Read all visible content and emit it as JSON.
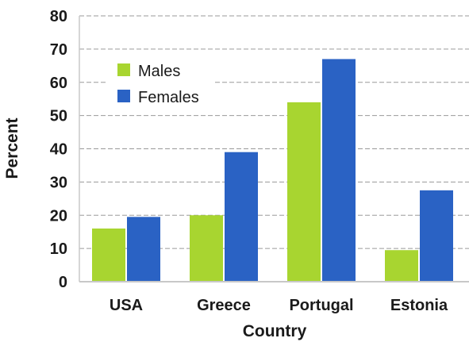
{
  "chart_data": {
    "type": "bar",
    "categories": [
      "USA",
      "Greece",
      "Portugal",
      "Estonia"
    ],
    "series": [
      {
        "name": "Males",
        "color": "#a8d530",
        "values": [
          16,
          20,
          54,
          9.5
        ]
      },
      {
        "name": "Females",
        "color": "#2a62c4",
        "values": [
          19.5,
          39,
          67,
          27.5
        ]
      }
    ],
    "title": "",
    "xlabel": "Country",
    "ylabel": "Percent",
    "ylim": [
      0,
      80
    ],
    "yticks": [
      "0",
      "10",
      "20",
      "30",
      "40",
      "50",
      "60",
      "70",
      "80"
    ],
    "grid": true,
    "legend_position": "top-left"
  }
}
